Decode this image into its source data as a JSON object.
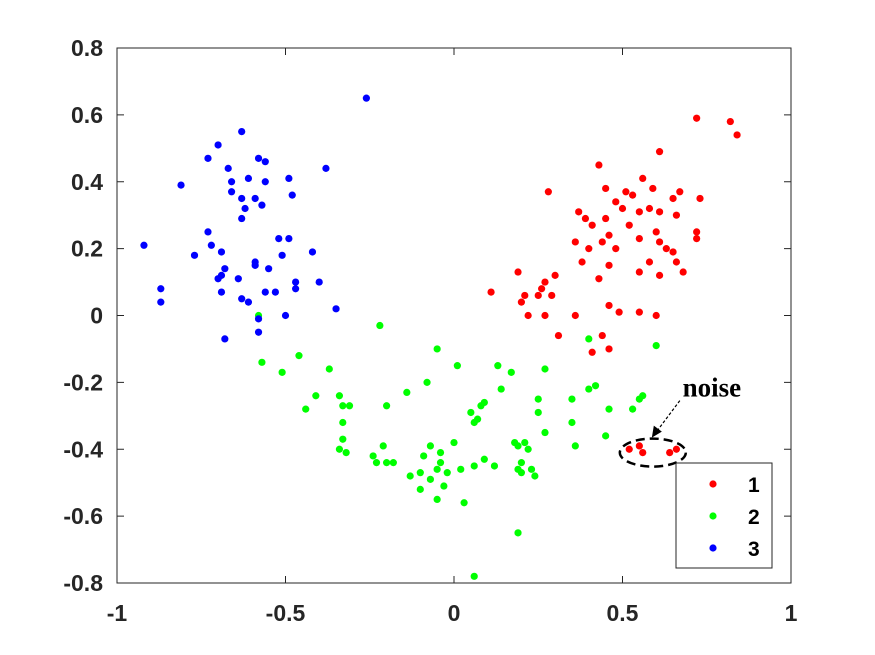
{
  "chart_data": {
    "type": "scatter",
    "title": "",
    "xlabel": "",
    "ylabel": "",
    "xlim": [
      -1,
      1
    ],
    "ylim": [
      -0.8,
      0.8
    ],
    "x_ticks": [
      -1,
      -0.5,
      0,
      0.5,
      1
    ],
    "x_tick_labels": [
      "-1",
      "-0.5",
      "0",
      "0.5",
      "1"
    ],
    "y_ticks": [
      -0.8,
      -0.6,
      -0.4,
      -0.2,
      0,
      0.2,
      0.4,
      0.6,
      0.8
    ],
    "y_tick_labels": [
      "-0.8",
      "-0.6",
      "-0.4",
      "-0.2",
      "0",
      "0.2",
      "0.4",
      "0.6",
      "0.8"
    ],
    "grid": false,
    "legend_position": "bottom-right",
    "annotation": {
      "text": "noise",
      "target": [
        0.59,
        -0.41
      ]
    },
    "series": [
      {
        "name": "1",
        "color": "#ff0000",
        "points": [
          [
            0.72,
            0.59
          ],
          [
            0.82,
            0.58
          ],
          [
            0.84,
            0.54
          ],
          [
            0.61,
            0.49
          ],
          [
            0.43,
            0.45
          ],
          [
            0.56,
            0.41
          ],
          [
            0.45,
            0.38
          ],
          [
            0.59,
            0.38
          ],
          [
            0.51,
            0.37
          ],
          [
            0.67,
            0.37
          ],
          [
            0.28,
            0.37
          ],
          [
            0.53,
            0.36
          ],
          [
            0.65,
            0.35
          ],
          [
            0.73,
            0.35
          ],
          [
            0.48,
            0.34
          ],
          [
            0.5,
            0.32
          ],
          [
            0.37,
            0.31
          ],
          [
            0.55,
            0.31
          ],
          [
            0.58,
            0.32
          ],
          [
            0.61,
            0.31
          ],
          [
            0.39,
            0.29
          ],
          [
            0.45,
            0.29
          ],
          [
            0.66,
            0.3
          ],
          [
            0.41,
            0.27
          ],
          [
            0.52,
            0.27
          ],
          [
            0.6,
            0.25
          ],
          [
            0.72,
            0.25
          ],
          [
            0.46,
            0.24
          ],
          [
            0.36,
            0.22
          ],
          [
            0.44,
            0.22
          ],
          [
            0.55,
            0.23
          ],
          [
            0.61,
            0.22
          ],
          [
            0.72,
            0.23
          ],
          [
            0.4,
            0.2
          ],
          [
            0.48,
            0.2
          ],
          [
            0.63,
            0.2
          ],
          [
            0.65,
            0.19
          ],
          [
            0.38,
            0.16
          ],
          [
            0.46,
            0.15
          ],
          [
            0.58,
            0.16
          ],
          [
            0.66,
            0.16
          ],
          [
            0.55,
            0.13
          ],
          [
            0.61,
            0.12
          ],
          [
            0.68,
            0.13
          ],
          [
            0.43,
            0.11
          ],
          [
            0.19,
            0.13
          ],
          [
            0.3,
            0.12
          ],
          [
            0.27,
            0.1
          ],
          [
            0.26,
            0.08
          ],
          [
            0.21,
            0.06
          ],
          [
            0.25,
            0.06
          ],
          [
            0.29,
            0.06
          ],
          [
            0.11,
            0.07
          ],
          [
            0.2,
            0.04
          ],
          [
            0.46,
            0.03
          ],
          [
            0.49,
            0.01
          ],
          [
            0.55,
            0.01
          ],
          [
            0.22,
            0.0
          ],
          [
            0.27,
            0.0
          ],
          [
            0.36,
            0.0
          ],
          [
            0.6,
            0.0
          ],
          [
            0.31,
            -0.06
          ],
          [
            0.44,
            -0.06
          ],
          [
            0.46,
            -0.1
          ],
          [
            0.41,
            -0.11
          ],
          [
            0.52,
            -0.4
          ],
          [
            0.56,
            -0.41
          ],
          [
            0.55,
            -0.39
          ],
          [
            0.64,
            -0.41
          ],
          [
            0.66,
            -0.4
          ]
        ]
      },
      {
        "name": "2",
        "color": "#00ff00",
        "points": [
          [
            -0.58,
            0.0
          ],
          [
            -0.22,
            -0.03
          ],
          [
            0.4,
            -0.07
          ],
          [
            0.6,
            -0.09
          ],
          [
            -0.05,
            -0.1
          ],
          [
            -0.46,
            -0.12
          ],
          [
            -0.57,
            -0.14
          ],
          [
            -0.37,
            -0.16
          ],
          [
            0.01,
            -0.15
          ],
          [
            0.13,
            -0.15
          ],
          [
            -0.51,
            -0.17
          ],
          [
            0.27,
            -0.16
          ],
          [
            -0.08,
            -0.2
          ],
          [
            0.14,
            -0.22
          ],
          [
            0.17,
            -0.17
          ],
          [
            0.4,
            -0.22
          ],
          [
            0.42,
            -0.21
          ],
          [
            -0.41,
            -0.24
          ],
          [
            -0.34,
            -0.24
          ],
          [
            0.09,
            -0.26
          ],
          [
            -0.14,
            -0.23
          ],
          [
            0.56,
            -0.24
          ],
          [
            0.55,
            -0.25
          ],
          [
            0.35,
            -0.25
          ],
          [
            0.25,
            -0.25
          ],
          [
            -0.44,
            -0.28
          ],
          [
            -0.33,
            -0.27
          ],
          [
            -0.31,
            -0.27
          ],
          [
            -0.2,
            -0.27
          ],
          [
            0.05,
            -0.29
          ],
          [
            0.08,
            -0.27
          ],
          [
            0.06,
            -0.32
          ],
          [
            0.25,
            -0.29
          ],
          [
            0.46,
            -0.28
          ],
          [
            0.53,
            -0.28
          ],
          [
            -0.33,
            -0.32
          ],
          [
            0.35,
            -0.32
          ],
          [
            0.07,
            -0.31
          ],
          [
            0.27,
            -0.35
          ],
          [
            -0.33,
            -0.37
          ],
          [
            0.18,
            -0.38
          ],
          [
            0.21,
            -0.38
          ],
          [
            0.45,
            -0.36
          ],
          [
            0.36,
            -0.39
          ],
          [
            0.09,
            -0.43
          ],
          [
            0.19,
            -0.39
          ],
          [
            0.22,
            -0.4
          ],
          [
            0.12,
            -0.45
          ],
          [
            -0.34,
            -0.4
          ],
          [
            -0.32,
            -0.41
          ],
          [
            -0.21,
            -0.39
          ],
          [
            -0.07,
            -0.39
          ],
          [
            -0.04,
            -0.41
          ],
          [
            0.0,
            -0.38
          ],
          [
            -0.24,
            -0.42
          ],
          [
            -0.09,
            -0.42
          ],
          [
            -0.04,
            -0.44
          ],
          [
            -0.02,
            -0.47
          ],
          [
            0.02,
            -0.46
          ],
          [
            -0.05,
            -0.46
          ],
          [
            -0.2,
            -0.44
          ],
          [
            -0.18,
            -0.44
          ],
          [
            -0.23,
            -0.44
          ],
          [
            0.2,
            -0.44
          ],
          [
            0.19,
            -0.46
          ],
          [
            0.2,
            -0.47
          ],
          [
            0.23,
            -0.46
          ],
          [
            0.06,
            -0.45
          ],
          [
            -0.1,
            -0.47
          ],
          [
            -0.13,
            -0.48
          ],
          [
            -0.07,
            -0.49
          ],
          [
            -0.03,
            -0.51
          ],
          [
            0.24,
            -0.48
          ],
          [
            -0.1,
            -0.52
          ],
          [
            -0.05,
            -0.55
          ],
          [
            0.03,
            -0.56
          ],
          [
            0.19,
            -0.65
          ],
          [
            0.06,
            -0.78
          ]
        ]
      },
      {
        "name": "3",
        "color": "#0000ff",
        "points": [
          [
            -0.26,
            0.65
          ],
          [
            -0.63,
            0.55
          ],
          [
            -0.7,
            0.51
          ],
          [
            -0.73,
            0.47
          ],
          [
            -0.58,
            0.47
          ],
          [
            -0.56,
            0.46
          ],
          [
            -0.38,
            0.44
          ],
          [
            -0.67,
            0.44
          ],
          [
            -0.61,
            0.41
          ],
          [
            -0.49,
            0.41
          ],
          [
            -0.66,
            0.4
          ],
          [
            -0.81,
            0.39
          ],
          [
            -0.56,
            0.4
          ],
          [
            -0.66,
            0.37
          ],
          [
            -0.48,
            0.36
          ],
          [
            -0.63,
            0.35
          ],
          [
            -0.59,
            0.35
          ],
          [
            -0.57,
            0.33
          ],
          [
            -0.62,
            0.32
          ],
          [
            -0.63,
            0.29
          ],
          [
            -0.73,
            0.25
          ],
          [
            -0.52,
            0.23
          ],
          [
            -0.49,
            0.23
          ],
          [
            -0.72,
            0.21
          ],
          [
            -0.92,
            0.21
          ],
          [
            -0.69,
            0.19
          ],
          [
            -0.42,
            0.19
          ],
          [
            -0.77,
            0.18
          ],
          [
            -0.51,
            0.18
          ],
          [
            -0.59,
            0.16
          ],
          [
            -0.59,
            0.15
          ],
          [
            -0.55,
            0.14
          ],
          [
            -0.68,
            0.14
          ],
          [
            -0.69,
            0.12
          ],
          [
            -0.7,
            0.11
          ],
          [
            -0.64,
            0.11
          ],
          [
            -0.47,
            0.1
          ],
          [
            -0.4,
            0.1
          ],
          [
            -0.87,
            0.08
          ],
          [
            -0.69,
            0.07
          ],
          [
            -0.56,
            0.07
          ],
          [
            -0.53,
            0.07
          ],
          [
            -0.47,
            0.08
          ],
          [
            -0.63,
            0.05
          ],
          [
            -0.61,
            0.04
          ],
          [
            -0.87,
            0.04
          ],
          [
            -0.58,
            -0.01
          ],
          [
            -0.5,
            0.0
          ],
          [
            -0.35,
            0.02
          ],
          [
            -0.58,
            -0.05
          ],
          [
            -0.68,
            -0.07
          ]
        ]
      }
    ]
  }
}
